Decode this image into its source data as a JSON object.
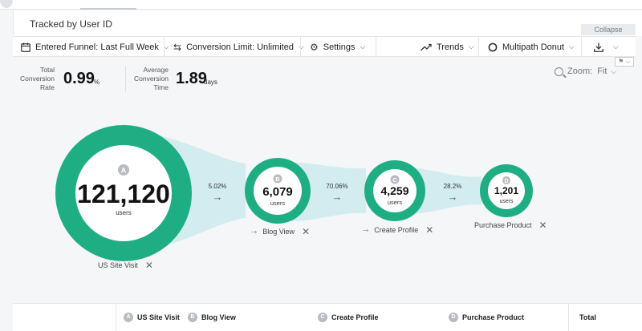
{
  "header": {
    "title": "Tracked by User ID"
  },
  "collapse_label": "Collapse",
  "toolbar": {
    "funnel_window": "Entered Funnel: Last Full Week",
    "conversion_limit": "Conversion Limit: Unlimited",
    "settings": "Settings",
    "trends": "Trends",
    "chart_type": "Multipath Donut"
  },
  "stats": {
    "conversion_rate": {
      "label_1": "Total",
      "label_2": "Conversion",
      "label_3": "Rate",
      "value": "0.99",
      "unit": "%"
    },
    "conversion_time": {
      "label_1": "Average",
      "label_2": "Conversion",
      "label_3": "Time",
      "value": "1.89",
      "unit": "days"
    }
  },
  "zoom": {
    "label": "Zoom:",
    "value": "Fit"
  },
  "colors": {
    "accent": "#1fae84",
    "flow": "#d2ecef"
  },
  "funnel": {
    "steps": [
      {
        "letter": "A",
        "count": "121,120",
        "unit": "users",
        "name": "US Site Visit"
      },
      {
        "letter": "B",
        "count": "6,079",
        "unit": "users",
        "name": "Blog View"
      },
      {
        "letter": "C",
        "count": "4,259",
        "unit": "users",
        "name": "Create Profile"
      },
      {
        "letter": "D",
        "count": "1,201",
        "unit": "users",
        "name": "Purchase Product"
      }
    ],
    "rates": [
      "5.02%",
      "70.06%",
      "28.2%"
    ]
  },
  "table": {
    "columns": [
      {
        "letter": "A",
        "label": "US Site Visit"
      },
      {
        "letter": "B",
        "label": "Blog View"
      },
      {
        "letter": "C",
        "label": "Create Profile"
      },
      {
        "letter": "D",
        "label": "Purchase Product"
      }
    ],
    "total_label": "Total"
  }
}
